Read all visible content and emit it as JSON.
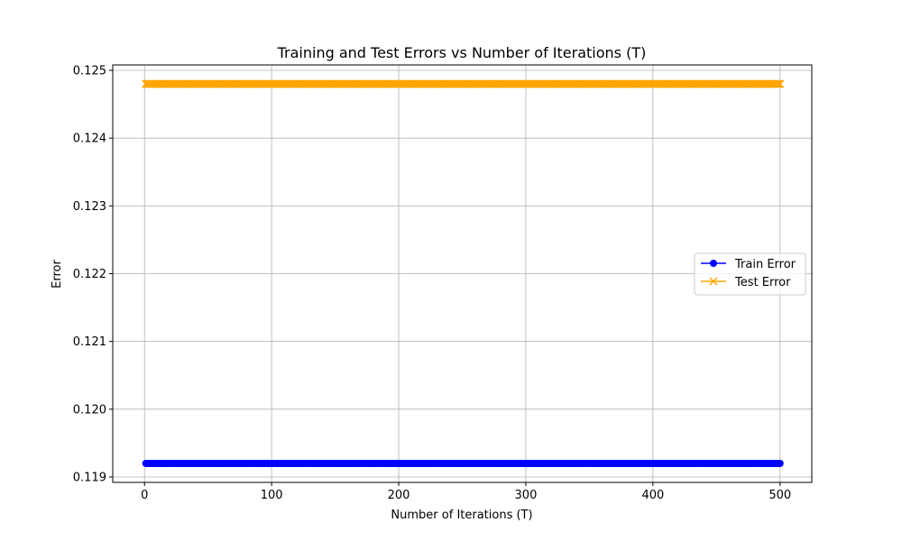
{
  "chart_data": {
    "type": "line",
    "title": "Training and Test Errors vs Number of Iterations (T)",
    "xlabel": "Number of Iterations (T)",
    "ylabel": "Error",
    "xlim": [
      -25,
      525
    ],
    "ylim": [
      0.11892,
      0.12508
    ],
    "x_ticks": [
      0,
      100,
      200,
      300,
      400,
      500
    ],
    "y_ticks": [
      0.119,
      0.12,
      0.121,
      0.122,
      0.123,
      0.124,
      0.125
    ],
    "y_tick_labels": [
      "0.119",
      "0.120",
      "0.121",
      "0.122",
      "0.123",
      "0.124",
      "0.125"
    ],
    "grid": true,
    "legend_position": "center-right",
    "x_range": {
      "start": 1,
      "end": 500,
      "step": 1
    },
    "series": [
      {
        "name": "Train Error",
        "value": 0.1192,
        "color": "#0000ff",
        "marker": "circle"
      },
      {
        "name": "Test Error",
        "value": 0.1248,
        "color": "#ffa500",
        "marker": "x"
      }
    ]
  }
}
